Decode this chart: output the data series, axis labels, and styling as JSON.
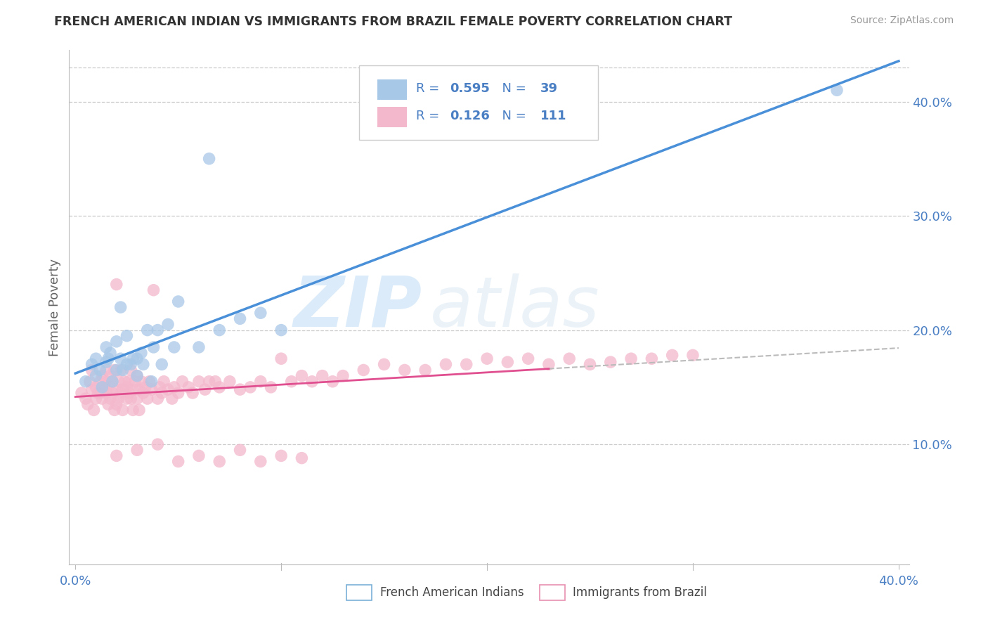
{
  "title": "FRENCH AMERICAN INDIAN VS IMMIGRANTS FROM BRAZIL FEMALE POVERTY CORRELATION CHART",
  "source": "Source: ZipAtlas.com",
  "ylabel": "Female Poverty",
  "xlim": [
    0.0,
    0.4
  ],
  "ylim": [
    0.0,
    0.44
  ],
  "legend1_r": "0.595",
  "legend1_n": "39",
  "legend2_r": "0.126",
  "legend2_n": "111",
  "blue_color": "#a8c8e8",
  "pink_color": "#f4b8cc",
  "blue_line_color": "#4a90d9",
  "pink_line_color": "#e05090",
  "blue_x": [
    0.005,
    0.008,
    0.01,
    0.01,
    0.012,
    0.013,
    0.015,
    0.015,
    0.016,
    0.017,
    0.018,
    0.02,
    0.02,
    0.022,
    0.022,
    0.023,
    0.025,
    0.025,
    0.027,
    0.028,
    0.03,
    0.03,
    0.032,
    0.033,
    0.035,
    0.037,
    0.038,
    0.04,
    0.042,
    0.045,
    0.048,
    0.05,
    0.06,
    0.065,
    0.07,
    0.08,
    0.09,
    0.1,
    0.37
  ],
  "blue_y": [
    0.155,
    0.17,
    0.16,
    0.175,
    0.165,
    0.15,
    0.172,
    0.185,
    0.175,
    0.18,
    0.155,
    0.165,
    0.19,
    0.175,
    0.22,
    0.165,
    0.17,
    0.195,
    0.17,
    0.175,
    0.16,
    0.175,
    0.18,
    0.17,
    0.2,
    0.155,
    0.185,
    0.2,
    0.17,
    0.205,
    0.185,
    0.225,
    0.185,
    0.35,
    0.2,
    0.21,
    0.215,
    0.2,
    0.41
  ],
  "pink_x": [
    0.003,
    0.005,
    0.006,
    0.007,
    0.008,
    0.008,
    0.009,
    0.01,
    0.01,
    0.011,
    0.012,
    0.012,
    0.013,
    0.013,
    0.014,
    0.015,
    0.015,
    0.015,
    0.016,
    0.016,
    0.017,
    0.017,
    0.018,
    0.018,
    0.019,
    0.019,
    0.02,
    0.02,
    0.021,
    0.021,
    0.022,
    0.022,
    0.023,
    0.023,
    0.024,
    0.025,
    0.025,
    0.026,
    0.026,
    0.027,
    0.027,
    0.028,
    0.028,
    0.029,
    0.03,
    0.03,
    0.031,
    0.031,
    0.032,
    0.033,
    0.034,
    0.035,
    0.036,
    0.037,
    0.038,
    0.04,
    0.041,
    0.042,
    0.043,
    0.045,
    0.047,
    0.048,
    0.05,
    0.052,
    0.055,
    0.057,
    0.06,
    0.063,
    0.065,
    0.068,
    0.07,
    0.075,
    0.08,
    0.085,
    0.09,
    0.095,
    0.1,
    0.105,
    0.11,
    0.115,
    0.12,
    0.125,
    0.13,
    0.14,
    0.15,
    0.16,
    0.17,
    0.18,
    0.19,
    0.2,
    0.21,
    0.22,
    0.23,
    0.24,
    0.25,
    0.26,
    0.27,
    0.28,
    0.29,
    0.3,
    0.02,
    0.03,
    0.04,
    0.05,
    0.06,
    0.07,
    0.08,
    0.09,
    0.1,
    0.11,
    0.02
  ],
  "pink_y": [
    0.145,
    0.14,
    0.135,
    0.155,
    0.148,
    0.165,
    0.13,
    0.15,
    0.14,
    0.145,
    0.155,
    0.145,
    0.14,
    0.16,
    0.15,
    0.155,
    0.145,
    0.165,
    0.135,
    0.15,
    0.14,
    0.16,
    0.145,
    0.155,
    0.13,
    0.165,
    0.148,
    0.135,
    0.155,
    0.14,
    0.145,
    0.165,
    0.148,
    0.13,
    0.155,
    0.14,
    0.15,
    0.145,
    0.155,
    0.14,
    0.165,
    0.148,
    0.13,
    0.155,
    0.14,
    0.16,
    0.148,
    0.13,
    0.155,
    0.145,
    0.15,
    0.14,
    0.155,
    0.148,
    0.235,
    0.14,
    0.15,
    0.145,
    0.155,
    0.148,
    0.14,
    0.15,
    0.145,
    0.155,
    0.15,
    0.145,
    0.155,
    0.148,
    0.155,
    0.155,
    0.15,
    0.155,
    0.148,
    0.15,
    0.155,
    0.15,
    0.175,
    0.155,
    0.16,
    0.155,
    0.16,
    0.155,
    0.16,
    0.165,
    0.17,
    0.165,
    0.165,
    0.17,
    0.17,
    0.175,
    0.172,
    0.175,
    0.17,
    0.175,
    0.17,
    0.172,
    0.175,
    0.175,
    0.178,
    0.178,
    0.09,
    0.095,
    0.1,
    0.085,
    0.09,
    0.085,
    0.095,
    0.085,
    0.09,
    0.088,
    0.24
  ]
}
